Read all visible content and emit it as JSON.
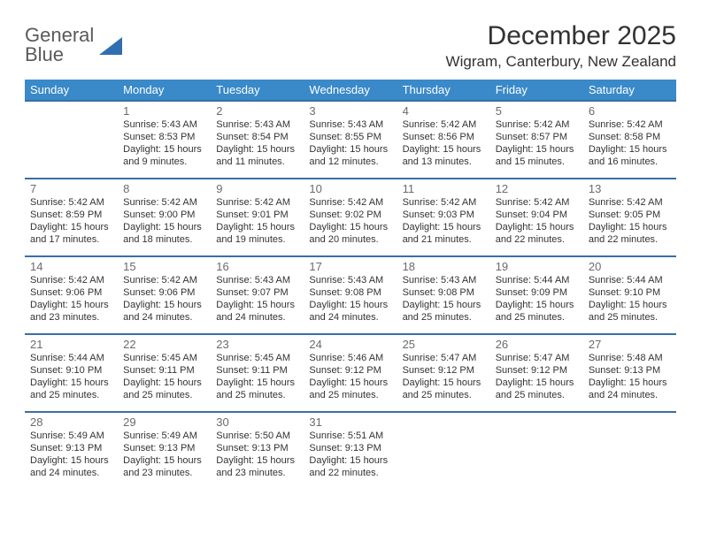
{
  "brand": {
    "part1": "General",
    "part2": "Blue"
  },
  "title": "December 2025",
  "location": "Wigram, Canterbury, New Zealand",
  "colors": {
    "header_bg": "#3a89c9",
    "header_fg": "#ffffff",
    "row_border": "#3a6ea5",
    "text": "#323232",
    "daynum": "#6b6b6b",
    "brand_gray": "#5a5a5a",
    "brand_blue": "#2f6fb0"
  },
  "weekdays": [
    "Sunday",
    "Monday",
    "Tuesday",
    "Wednesday",
    "Thursday",
    "Friday",
    "Saturday"
  ],
  "weeks": [
    [
      null,
      {
        "day": "1",
        "sunrise": "Sunrise: 5:43 AM",
        "sunset": "Sunset: 8:53 PM",
        "daylight": "Daylight: 15 hours and 9 minutes."
      },
      {
        "day": "2",
        "sunrise": "Sunrise: 5:43 AM",
        "sunset": "Sunset: 8:54 PM",
        "daylight": "Daylight: 15 hours and 11 minutes."
      },
      {
        "day": "3",
        "sunrise": "Sunrise: 5:43 AM",
        "sunset": "Sunset: 8:55 PM",
        "daylight": "Daylight: 15 hours and 12 minutes."
      },
      {
        "day": "4",
        "sunrise": "Sunrise: 5:42 AM",
        "sunset": "Sunset: 8:56 PM",
        "daylight": "Daylight: 15 hours and 13 minutes."
      },
      {
        "day": "5",
        "sunrise": "Sunrise: 5:42 AM",
        "sunset": "Sunset: 8:57 PM",
        "daylight": "Daylight: 15 hours and 15 minutes."
      },
      {
        "day": "6",
        "sunrise": "Sunrise: 5:42 AM",
        "sunset": "Sunset: 8:58 PM",
        "daylight": "Daylight: 15 hours and 16 minutes."
      }
    ],
    [
      {
        "day": "7",
        "sunrise": "Sunrise: 5:42 AM",
        "sunset": "Sunset: 8:59 PM",
        "daylight": "Daylight: 15 hours and 17 minutes."
      },
      {
        "day": "8",
        "sunrise": "Sunrise: 5:42 AM",
        "sunset": "Sunset: 9:00 PM",
        "daylight": "Daylight: 15 hours and 18 minutes."
      },
      {
        "day": "9",
        "sunrise": "Sunrise: 5:42 AM",
        "sunset": "Sunset: 9:01 PM",
        "daylight": "Daylight: 15 hours and 19 minutes."
      },
      {
        "day": "10",
        "sunrise": "Sunrise: 5:42 AM",
        "sunset": "Sunset: 9:02 PM",
        "daylight": "Daylight: 15 hours and 20 minutes."
      },
      {
        "day": "11",
        "sunrise": "Sunrise: 5:42 AM",
        "sunset": "Sunset: 9:03 PM",
        "daylight": "Daylight: 15 hours and 21 minutes."
      },
      {
        "day": "12",
        "sunrise": "Sunrise: 5:42 AM",
        "sunset": "Sunset: 9:04 PM",
        "daylight": "Daylight: 15 hours and 22 minutes."
      },
      {
        "day": "13",
        "sunrise": "Sunrise: 5:42 AM",
        "sunset": "Sunset: 9:05 PM",
        "daylight": "Daylight: 15 hours and 22 minutes."
      }
    ],
    [
      {
        "day": "14",
        "sunrise": "Sunrise: 5:42 AM",
        "sunset": "Sunset: 9:06 PM",
        "daylight": "Daylight: 15 hours and 23 minutes."
      },
      {
        "day": "15",
        "sunrise": "Sunrise: 5:42 AM",
        "sunset": "Sunset: 9:06 PM",
        "daylight": "Daylight: 15 hours and 24 minutes."
      },
      {
        "day": "16",
        "sunrise": "Sunrise: 5:43 AM",
        "sunset": "Sunset: 9:07 PM",
        "daylight": "Daylight: 15 hours and 24 minutes."
      },
      {
        "day": "17",
        "sunrise": "Sunrise: 5:43 AM",
        "sunset": "Sunset: 9:08 PM",
        "daylight": "Daylight: 15 hours and 24 minutes."
      },
      {
        "day": "18",
        "sunrise": "Sunrise: 5:43 AM",
        "sunset": "Sunset: 9:08 PM",
        "daylight": "Daylight: 15 hours and 25 minutes."
      },
      {
        "day": "19",
        "sunrise": "Sunrise: 5:44 AM",
        "sunset": "Sunset: 9:09 PM",
        "daylight": "Daylight: 15 hours and 25 minutes."
      },
      {
        "day": "20",
        "sunrise": "Sunrise: 5:44 AM",
        "sunset": "Sunset: 9:10 PM",
        "daylight": "Daylight: 15 hours and 25 minutes."
      }
    ],
    [
      {
        "day": "21",
        "sunrise": "Sunrise: 5:44 AM",
        "sunset": "Sunset: 9:10 PM",
        "daylight": "Daylight: 15 hours and 25 minutes."
      },
      {
        "day": "22",
        "sunrise": "Sunrise: 5:45 AM",
        "sunset": "Sunset: 9:11 PM",
        "daylight": "Daylight: 15 hours and 25 minutes."
      },
      {
        "day": "23",
        "sunrise": "Sunrise: 5:45 AM",
        "sunset": "Sunset: 9:11 PM",
        "daylight": "Daylight: 15 hours and 25 minutes."
      },
      {
        "day": "24",
        "sunrise": "Sunrise: 5:46 AM",
        "sunset": "Sunset: 9:12 PM",
        "daylight": "Daylight: 15 hours and 25 minutes."
      },
      {
        "day": "25",
        "sunrise": "Sunrise: 5:47 AM",
        "sunset": "Sunset: 9:12 PM",
        "daylight": "Daylight: 15 hours and 25 minutes."
      },
      {
        "day": "26",
        "sunrise": "Sunrise: 5:47 AM",
        "sunset": "Sunset: 9:12 PM",
        "daylight": "Daylight: 15 hours and 25 minutes."
      },
      {
        "day": "27",
        "sunrise": "Sunrise: 5:48 AM",
        "sunset": "Sunset: 9:13 PM",
        "daylight": "Daylight: 15 hours and 24 minutes."
      }
    ],
    [
      {
        "day": "28",
        "sunrise": "Sunrise: 5:49 AM",
        "sunset": "Sunset: 9:13 PM",
        "daylight": "Daylight: 15 hours and 24 minutes."
      },
      {
        "day": "29",
        "sunrise": "Sunrise: 5:49 AM",
        "sunset": "Sunset: 9:13 PM",
        "daylight": "Daylight: 15 hours and 23 minutes."
      },
      {
        "day": "30",
        "sunrise": "Sunrise: 5:50 AM",
        "sunset": "Sunset: 9:13 PM",
        "daylight": "Daylight: 15 hours and 23 minutes."
      },
      {
        "day": "31",
        "sunrise": "Sunrise: 5:51 AM",
        "sunset": "Sunset: 9:13 PM",
        "daylight": "Daylight: 15 hours and 22 minutes."
      },
      null,
      null,
      null
    ]
  ]
}
